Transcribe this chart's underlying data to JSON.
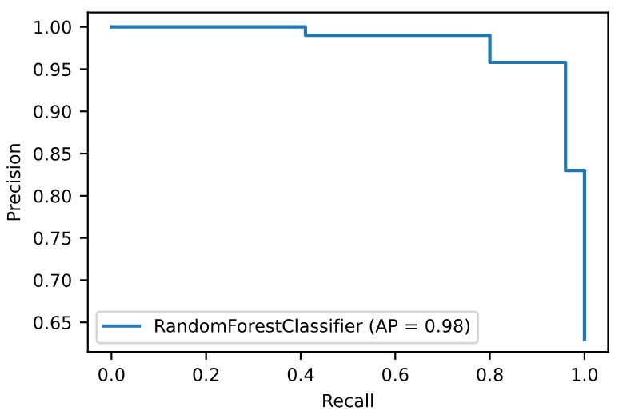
{
  "chart_data": {
    "type": "step",
    "xlabel": "Recall",
    "ylabel": "Precision",
    "x": [
      0.0,
      0.41,
      0.8,
      0.96,
      1.0
    ],
    "series": [
      {
        "name": "RandomForestClassifier (AP = 0.98)",
        "color": "#1f77b4",
        "values": [
          1.0,
          0.99,
          0.958,
          0.83,
          0.63
        ]
      }
    ],
    "xlim": [
      -0.05,
      1.05
    ],
    "ylim": [
      0.615,
      1.017
    ],
    "xticks": [
      {
        "value": 0,
        "label": "0.0"
      },
      0.2,
      0.4,
      0.6,
      0.8,
      {
        "value": 1,
        "label": "1.0"
      }
    ],
    "yticks": [
      0.65,
      {
        "value": 0.7,
        "label": "0.70"
      },
      0.75,
      {
        "value": 0.8,
        "label": "0.80"
      },
      0.85,
      {
        "value": 0.9,
        "label": "0.90"
      },
      0.95,
      {
        "value": 1,
        "label": "1.00"
      }
    ],
    "legend": "lower left",
    "grid": false
  }
}
